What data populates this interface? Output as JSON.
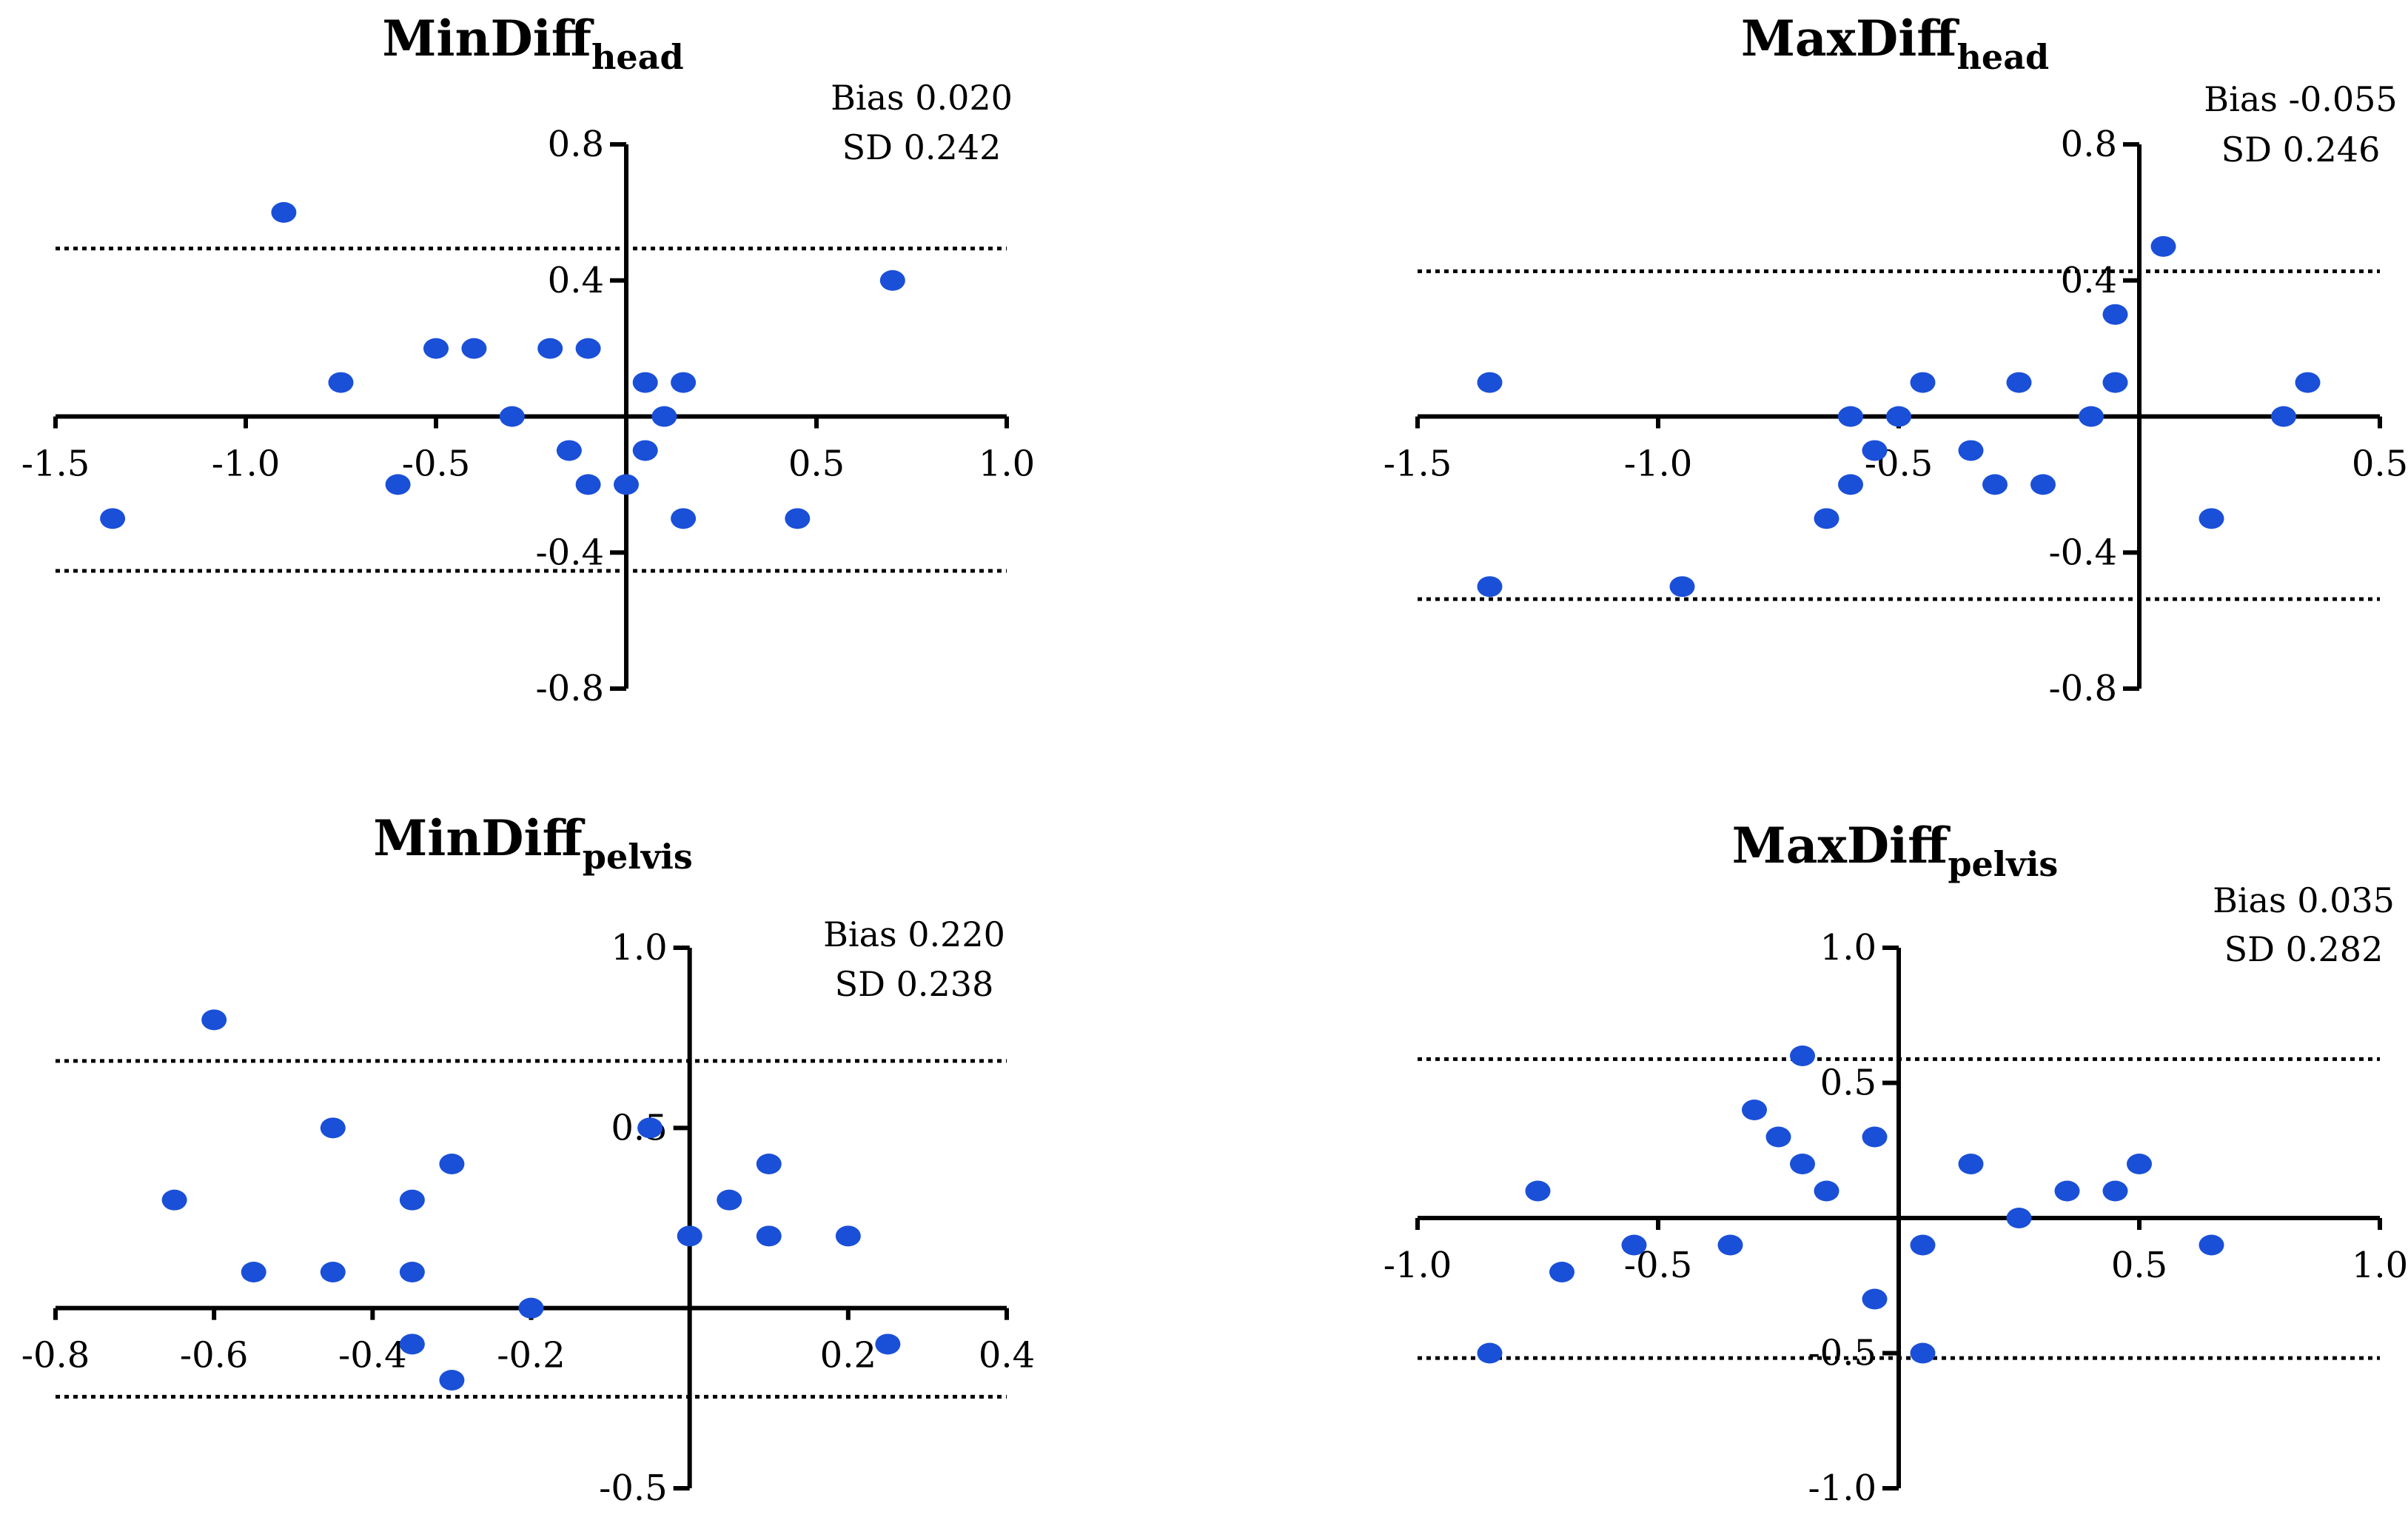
{
  "colors": {
    "point": "#1a4fd8",
    "axis": "#000000",
    "background": "#ffffff"
  },
  "chart_data": [
    {
      "type": "scatter",
      "title": "MinDiff",
      "subscript": "head",
      "annotations": [
        "Bias 0.020",
        "SD 0.242"
      ],
      "xlim": [
        -1.5,
        1.0
      ],
      "ylim": [
        -0.8,
        0.8
      ],
      "xticks": [
        -1.5,
        -1.0,
        -0.5,
        0.5,
        1.0
      ],
      "xtick_labels": [
        "-1.5",
        "-1.0",
        "-0.5",
        "0.5",
        "1.0"
      ],
      "yticks": [
        0.8,
        0.4,
        -0.4,
        -0.8
      ],
      "ytick_labels": [
        "0.8",
        "0.4",
        "-0.4",
        "-0.8"
      ],
      "limits_of_agreement": [
        0.494,
        -0.454
      ],
      "points": [
        {
          "x": -1.35,
          "y": -0.3
        },
        {
          "x": -0.9,
          "y": 0.6
        },
        {
          "x": -0.75,
          "y": 0.1
        },
        {
          "x": -0.6,
          "y": -0.2
        },
        {
          "x": -0.5,
          "y": 0.2
        },
        {
          "x": -0.4,
          "y": 0.2
        },
        {
          "x": -0.3,
          "y": 0.0
        },
        {
          "x": -0.2,
          "y": 0.2
        },
        {
          "x": -0.15,
          "y": -0.1
        },
        {
          "x": -0.1,
          "y": 0.2
        },
        {
          "x": -0.1,
          "y": -0.2
        },
        {
          "x": 0.0,
          "y": -0.2
        },
        {
          "x": 0.05,
          "y": 0.1
        },
        {
          "x": 0.05,
          "y": -0.1
        },
        {
          "x": 0.1,
          "y": 0.0
        },
        {
          "x": 0.15,
          "y": 0.1
        },
        {
          "x": 0.15,
          "y": -0.3
        },
        {
          "x": 0.45,
          "y": -0.3
        },
        {
          "x": 0.7,
          "y": 0.4
        }
      ]
    },
    {
      "type": "scatter",
      "title": "MaxDiff",
      "subscript": "head",
      "annotations": [
        "Bias -0.055",
        "SD 0.246"
      ],
      "xlim": [
        -1.5,
        0.5
      ],
      "ylim": [
        -0.8,
        0.8
      ],
      "xticks": [
        -1.5,
        -1.0,
        -0.5,
        0.5
      ],
      "xtick_labels": [
        "-1.5",
        "-1.0",
        "-0.5",
        "0.5"
      ],
      "yticks": [
        0.8,
        0.4,
        -0.4,
        -0.8
      ],
      "ytick_labels": [
        "0.8",
        "0.4",
        "-0.4",
        "-0.8"
      ],
      "limits_of_agreement": [
        0.427,
        -0.537
      ],
      "points": [
        {
          "x": -1.35,
          "y": 0.1
        },
        {
          "x": -1.35,
          "y": -0.5
        },
        {
          "x": -0.95,
          "y": -0.5
        },
        {
          "x": -0.65,
          "y": -0.3
        },
        {
          "x": -0.6,
          "y": 0.0
        },
        {
          "x": -0.6,
          "y": -0.2
        },
        {
          "x": -0.55,
          "y": -0.1
        },
        {
          "x": -0.5,
          "y": 0.0
        },
        {
          "x": -0.45,
          "y": 0.1
        },
        {
          "x": -0.35,
          "y": -0.1
        },
        {
          "x": -0.3,
          "y": -0.2
        },
        {
          "x": -0.25,
          "y": 0.1
        },
        {
          "x": -0.2,
          "y": -0.2
        },
        {
          "x": -0.1,
          "y": 0.0
        },
        {
          "x": -0.05,
          "y": 0.3
        },
        {
          "x": -0.05,
          "y": 0.1
        },
        {
          "x": 0.05,
          "y": 0.5
        },
        {
          "x": 0.15,
          "y": -0.3
        },
        {
          "x": 0.3,
          "y": 0.0
        },
        {
          "x": 0.35,
          "y": 0.1
        }
      ]
    },
    {
      "type": "scatter",
      "title": "MinDiff",
      "subscript": "pelvis",
      "annotations": [
        "Bias 0.220",
        "SD 0.238"
      ],
      "xlim": [
        -0.8,
        0.4
      ],
      "ylim": [
        -0.5,
        1.0
      ],
      "xticks": [
        -0.8,
        -0.6,
        -0.4,
        -0.2,
        0.2,
        0.4
      ],
      "xtick_labels": [
        "-0.8",
        "-0.6",
        "-0.4",
        "-0.2",
        "0.2",
        "0.4"
      ],
      "yticks": [
        1.0,
        0.5,
        -0.5
      ],
      "ytick_labels": [
        "1.0",
        "0.5",
        "-0.5"
      ],
      "limits_of_agreement": [
        0.686,
        -0.246
      ],
      "points": [
        {
          "x": -0.65,
          "y": 0.3
        },
        {
          "x": -0.6,
          "y": 0.8
        },
        {
          "x": -0.55,
          "y": 0.1
        },
        {
          "x": -0.45,
          "y": 0.5
        },
        {
          "x": -0.45,
          "y": 0.1
        },
        {
          "x": -0.35,
          "y": 0.3
        },
        {
          "x": -0.35,
          "y": 0.1
        },
        {
          "x": -0.35,
          "y": -0.1
        },
        {
          "x": -0.3,
          "y": 0.4
        },
        {
          "x": -0.3,
          "y": -0.2
        },
        {
          "x": -0.2,
          "y": 0.0
        },
        {
          "x": -0.05,
          "y": 0.5
        },
        {
          "x": 0.0,
          "y": 0.2
        },
        {
          "x": 0.05,
          "y": 0.3
        },
        {
          "x": 0.1,
          "y": 0.4
        },
        {
          "x": 0.1,
          "y": 0.2
        },
        {
          "x": 0.2,
          "y": 0.2
        },
        {
          "x": 0.25,
          "y": -0.1
        }
      ]
    },
    {
      "type": "scatter",
      "title": "MaxDiff",
      "subscript": "pelvis",
      "annotations": [
        "Bias 0.035",
        "SD 0.282"
      ],
      "xlim": [
        -1.0,
        1.0
      ],
      "ylim": [
        -1.0,
        1.0
      ],
      "xticks": [
        -1.0,
        -0.5,
        0.5,
        1.0
      ],
      "xtick_labels": [
        "-1.0",
        "-0.5",
        "0.5",
        "1.0"
      ],
      "yticks": [
        1.0,
        0.5,
        -0.5,
        -1.0
      ],
      "ytick_labels": [
        "1.0",
        "0.5",
        "-0.5",
        "-1.0"
      ],
      "limits_of_agreement": [
        0.588,
        -0.518
      ],
      "points": [
        {
          "x": -0.85,
          "y": -0.5
        },
        {
          "x": -0.75,
          "y": 0.1
        },
        {
          "x": -0.7,
          "y": -0.2
        },
        {
          "x": -0.55,
          "y": -0.1
        },
        {
          "x": -0.35,
          "y": -0.1
        },
        {
          "x": -0.3,
          "y": 0.4
        },
        {
          "x": -0.25,
          "y": 0.3
        },
        {
          "x": -0.2,
          "y": 0.6
        },
        {
          "x": -0.2,
          "y": 0.2
        },
        {
          "x": -0.15,
          "y": 0.1
        },
        {
          "x": -0.05,
          "y": 0.3
        },
        {
          "x": -0.05,
          "y": -0.3
        },
        {
          "x": 0.05,
          "y": -0.1
        },
        {
          "x": 0.05,
          "y": -0.5
        },
        {
          "x": 0.15,
          "y": 0.2
        },
        {
          "x": 0.25,
          "y": 0.0
        },
        {
          "x": 0.35,
          "y": 0.1
        },
        {
          "x": 0.45,
          "y": 0.1
        },
        {
          "x": 0.5,
          "y": 0.2
        },
        {
          "x": 0.65,
          "y": -0.1
        }
      ]
    }
  ]
}
